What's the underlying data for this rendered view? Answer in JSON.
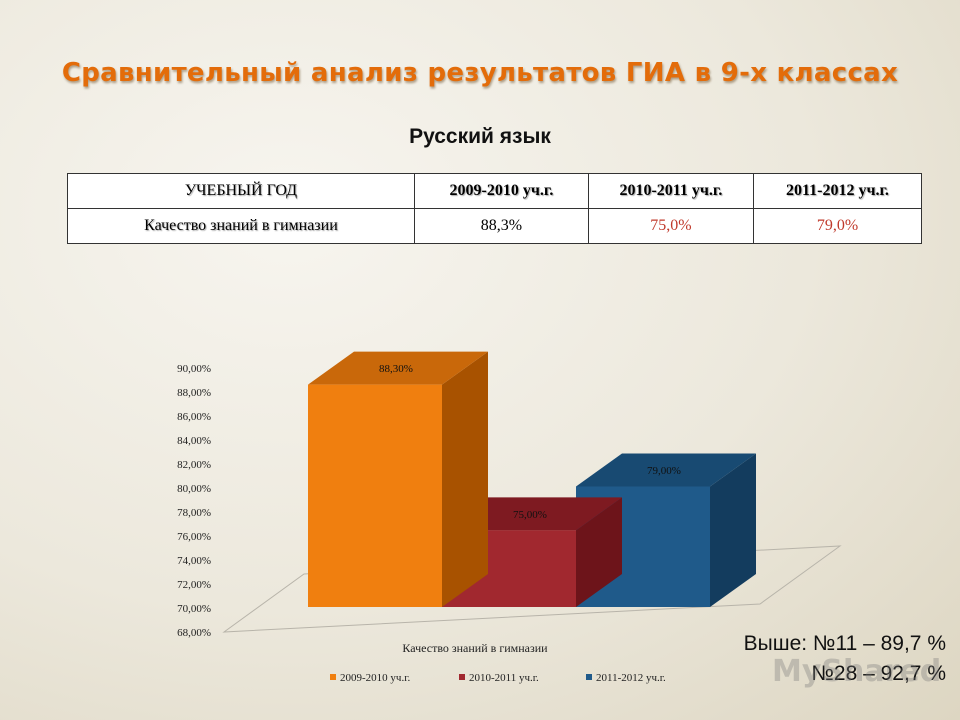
{
  "slide": {
    "title": "Сравнительный анализ результатов ГИА в 9-х классах",
    "subtitle": "Русский язык"
  },
  "table": {
    "headers": [
      "УЧЕБНЫЙ ГОД",
      "2009-2010 уч.г.",
      "2010-2011 уч.г.",
      "2011-2012 уч.г."
    ],
    "row": [
      "Качество знаний в гимназии",
      "88,3%",
      "75,0%",
      "79,0%"
    ]
  },
  "chart_data": {
    "type": "bar",
    "categories": [
      "Качество знаний в гимназии"
    ],
    "xlabel": "Качество знаний в гимназии",
    "ylim": [
      68,
      90
    ],
    "yticks": [
      "90,00%",
      "88,00%",
      "86,00%",
      "84,00%",
      "82,00%",
      "80,00%",
      "78,00%",
      "76,00%",
      "74,00%",
      "72,00%",
      "70,00%",
      "68,00%"
    ],
    "series": [
      {
        "name": "2009-2010 уч.г.",
        "values": [
          88.3
        ],
        "label": "88,30%",
        "color": "#f07f0f",
        "side": "#a85200",
        "top": "#c9680a"
      },
      {
        "name": "2010-2011 уч.г.",
        "values": [
          75.0
        ],
        "label": "75,00%",
        "color": "#a1282f",
        "side": "#6d141a",
        "top": "#7e1a21"
      },
      {
        "name": "2011-2012 уч.г.",
        "values": [
          79.0
        ],
        "label": "79,00%",
        "color": "#1f5a8a",
        "side": "#133c5e",
        "top": "#184a72"
      }
    ],
    "legend_position": "bottom",
    "grid": false
  },
  "notes": [
    "Выше: №11 – 89,7 %",
    "№28 – 92,7 %"
  ],
  "watermark": "MyShared"
}
